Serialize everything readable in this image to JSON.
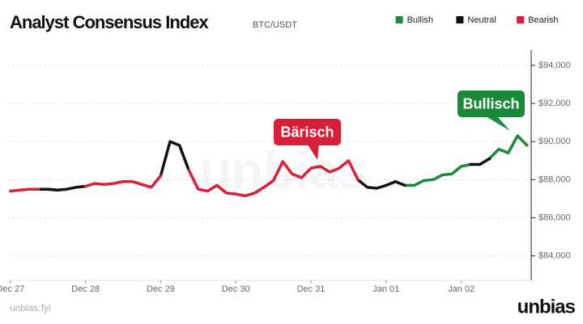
{
  "chart_data": {
    "type": "line",
    "title": "Analyst Consensus Index",
    "subtitle": "BTC/USDT",
    "source": "unbias.fyi",
    "brand": "unbias",
    "watermark": "unbias",
    "annotations": [
      {
        "text": "Bärisch",
        "color": "#d81f3a"
      },
      {
        "text": "Bullisch",
        "color": "#1a8a3a"
      }
    ],
    "legend": "top-right",
    "grid": true,
    "x": [
      0,
      0.125,
      0.25,
      0.375,
      0.5,
      0.625,
      0.75,
      0.875,
      1,
      1.125,
      1.25,
      1.375,
      1.5,
      1.625,
      1.75,
      1.875,
      2,
      2.125,
      2.25,
      2.375,
      2.5,
      2.625,
      2.75,
      2.875,
      3,
      3.125,
      3.25,
      3.375,
      3.5,
      3.625,
      3.75,
      3.875,
      4,
      4.125,
      4.25,
      4.375,
      4.5,
      4.625,
      4.75,
      4.875,
      5,
      5.125,
      5.25,
      5.375,
      5.5,
      5.625,
      5.75,
      5.875,
      6,
      6.125,
      6.25,
      6.375,
      6.5,
      6.625,
      6.75,
      6.875
    ],
    "xlim": [
      -0.03,
      6.92
    ],
    "xticks": [
      {
        "value": 0,
        "label": "Dec 27"
      },
      {
        "value": 1,
        "label": "Dec 28"
      },
      {
        "value": 2,
        "label": "Dec 29"
      },
      {
        "value": 3,
        "label": "Dec 30"
      },
      {
        "value": 4,
        "label": "Dec 31"
      },
      {
        "value": 5,
        "label": "Jan 01"
      },
      {
        "value": 6,
        "label": "Jan 02"
      }
    ],
    "ylim": [
      82800,
      94800
    ],
    "yticks": [
      {
        "value": 84000,
        "label": "$84,000"
      },
      {
        "value": 86000,
        "label": "$86,000"
      },
      {
        "value": 88000,
        "label": "$88,000"
      },
      {
        "value": 90000,
        "label": "$90,000"
      },
      {
        "value": 92000,
        "label": "$92,000"
      },
      {
        "value": 94000,
        "label": "$94,000"
      }
    ],
    "series": [
      {
        "name": "Bullish",
        "color": "#1a8a3a",
        "values": [
          null,
          null,
          null,
          null,
          87500,
          87450,
          null,
          null,
          null,
          null,
          null,
          null,
          null,
          null,
          null,
          null,
          null,
          null,
          null,
          null,
          null,
          null,
          null,
          null,
          null,
          null,
          null,
          null,
          null,
          null,
          null,
          null,
          null,
          null,
          null,
          null,
          null,
          null,
          null,
          null,
          null,
          null,
          87700,
          87700,
          87950,
          88000,
          88250,
          88300,
          88700,
          88800,
          null,
          89100,
          89600,
          89400,
          90300,
          89800
        ]
      },
      {
        "name": "Neutral",
        "color": "#111111",
        "values": [
          87400,
          null,
          null,
          87500,
          87500,
          87450,
          87500,
          87600,
          87650,
          null,
          null,
          null,
          null,
          null,
          null,
          null,
          88200,
          90000,
          89800,
          88500,
          null,
          null,
          null,
          null,
          null,
          null,
          null,
          null,
          null,
          null,
          null,
          null,
          null,
          null,
          null,
          null,
          null,
          88000,
          87600,
          87550,
          87700,
          87900,
          87700,
          null,
          null,
          null,
          null,
          null,
          null,
          88800,
          88800,
          89100,
          null,
          null,
          null,
          null
        ]
      },
      {
        "name": "Bearish",
        "color": "#d81f3a",
        "values": [
          87400,
          87450,
          87500,
          87500,
          null,
          null,
          null,
          null,
          87650,
          87800,
          87750,
          87800,
          87900,
          87900,
          87750,
          87600,
          88200,
          null,
          null,
          88500,
          87500,
          87400,
          87700,
          87300,
          87250,
          87150,
          87300,
          87600,
          87950,
          88950,
          88300,
          88100,
          88600,
          88700,
          88400,
          88600,
          89000,
          88000,
          null,
          null,
          null,
          null,
          null,
          null,
          null,
          null,
          null,
          null,
          null,
          null,
          null,
          null,
          null,
          null,
          null,
          null
        ]
      }
    ]
  }
}
